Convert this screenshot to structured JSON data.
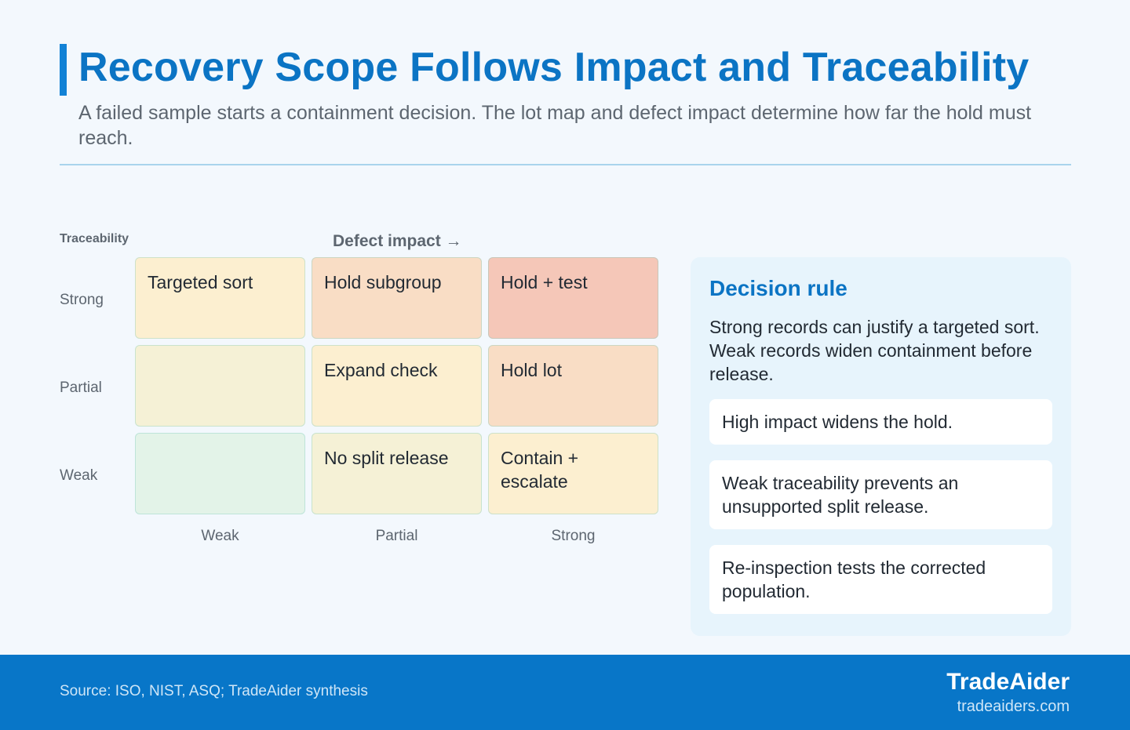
{
  "header": {
    "title": "Recovery Scope Follows Impact and Traceability",
    "subtitle": "A failed sample starts a containment decision. The lot map and defect impact determine how far the hold must reach."
  },
  "matrix": {
    "y_axis_label": "Traceability",
    "x_axis_label": "Defect impact →",
    "rows": [
      {
        "label": "Strong",
        "cells": [
          {
            "text": "Targeted sort",
            "color": "#fcefd0"
          },
          {
            "text": "Hold subgroup",
            "color": "#f9ddc5"
          },
          {
            "text": "Hold + test",
            "color": "#f5c7b8"
          }
        ]
      },
      {
        "label": "Partial",
        "cells": [
          {
            "text": "",
            "color": "#f5f1d6"
          },
          {
            "text": "Expand check",
            "color": "#fcefd0"
          },
          {
            "text": "Hold lot",
            "color": "#f9ddc5"
          }
        ]
      },
      {
        "label": "Weak",
        "cells": [
          {
            "text": "",
            "color": "#e3f3e8"
          },
          {
            "text": "No split release",
            "color": "#f5f1d6"
          },
          {
            "text": "Contain + escalate",
            "color": "#fcefd0"
          }
        ]
      }
    ],
    "columns": [
      "Weak",
      "Partial",
      "Strong"
    ]
  },
  "panel": {
    "title": "Decision rule",
    "text": "Strong records can justify a targeted sort. Weak records widen containment before release.",
    "points": [
      "High impact widens the hold.",
      "Weak traceability prevents an unsupported split release.",
      "Re-inspection tests the corrected population."
    ]
  },
  "footer": {
    "source": "Source: ISO, NIST, ASQ; TradeAider synthesis",
    "brand": "TradeAider",
    "url": "tradeaiders.com"
  }
}
